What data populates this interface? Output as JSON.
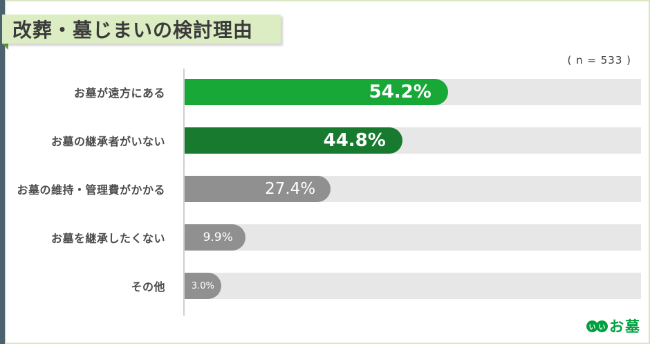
{
  "page": {
    "title": "改葬・墓じまいの検討理由",
    "sample_size_label": "( n = 533 )",
    "colors": {
      "edge_strip": "#4c636d",
      "page_border": "#d9e7c2",
      "title_bg": "#dcedc3",
      "fold_green": "#61a53c",
      "track": "#e7e7e7",
      "axis": "#cfcfcf",
      "bar_green_bright": "#17a838",
      "bar_green_dark": "#177a2e",
      "bar_gray": "#909090",
      "logo_green": "#00a040"
    }
  },
  "chart_data": {
    "type": "bar",
    "orientation": "horizontal",
    "title": "改葬・墓じまいの検討理由",
    "sample_size": 533,
    "sample_size_label": "( n = 533 )",
    "categories": [
      "お墓が遠方にある",
      "お墓の継承者がいない",
      "お墓の維持・管理費がかかる",
      "お墓を継承したくない",
      "その他"
    ],
    "values": [
      54.2,
      44.8,
      27.4,
      9.9,
      3.0
    ],
    "value_labels": [
      "54.2%",
      "44.8%",
      "27.4%",
      "9.9%",
      "3.0%"
    ],
    "xlim": [
      0,
      100
    ],
    "grid": false,
    "legend": false,
    "rows": [
      {
        "label": "お墓が遠方にある",
        "value": 54.2,
        "value_label": "54.2%",
        "width_pct": 57.7,
        "color": "#17a838",
        "size": "lg"
      },
      {
        "label": "お墓の継承者がいない",
        "value": 44.8,
        "value_label": "44.8%",
        "width_pct": 47.7,
        "color": "#177a2e",
        "size": "lg"
      },
      {
        "label": "お墓の維持・管理費がかかる",
        "value": 27.4,
        "value_label": "27.4%",
        "width_pct": 32.0,
        "color": "#909090",
        "size": "md"
      },
      {
        "label": "お墓を継承したくない",
        "value": 9.9,
        "value_label": "9.9%",
        "width_pct": 13.3,
        "color": "#909090",
        "size": "sm"
      },
      {
        "label": "その他",
        "value": 3.0,
        "value_label": "3.0%",
        "width_pct": 8.0,
        "color": "#909090",
        "size": "xs"
      }
    ]
  },
  "logo": {
    "circle1": "い",
    "circle2": "い",
    "text": "お墓"
  }
}
